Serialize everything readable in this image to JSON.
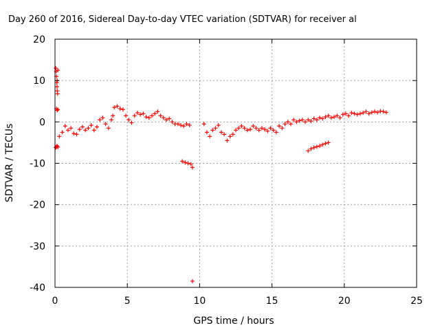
{
  "chart_data": {
    "type": "scatter",
    "title": "Day 260 of 2016, Sidereal Day-to-day VTEC variation (SDTVAR) for receiver al",
    "xlabel": "GPS time / hours",
    "ylabel": "SDTVAR / TECUs",
    "xlim": [
      0,
      25
    ],
    "ylim": [
      -40,
      20
    ],
    "xticks": [
      0,
      5,
      10,
      15,
      20,
      25
    ],
    "yticks": [
      20,
      10,
      0,
      -10,
      -20,
      -30,
      -40
    ],
    "grid": true,
    "marker_color": "#ff0000",
    "marker": "+",
    "series": [
      {
        "name": "SDTVAR",
        "points": [
          [
            0.05,
            13.0
          ],
          [
            0.08,
            12.2
          ],
          [
            0.1,
            11.0
          ],
          [
            0.12,
            9.5
          ],
          [
            0.14,
            8.5
          ],
          [
            0.16,
            7.5
          ],
          [
            0.18,
            6.8
          ],
          [
            0.2,
            12.5
          ],
          [
            0.15,
            10.0
          ],
          [
            0.1,
            3.2
          ],
          [
            0.15,
            2.8
          ],
          [
            0.2,
            3.0
          ],
          [
            0.05,
            -6.2
          ],
          [
            0.1,
            -6.0
          ],
          [
            0.15,
            -5.8
          ],
          [
            0.2,
            -6.1
          ],
          [
            0.3,
            -3.5
          ],
          [
            0.5,
            -2.5
          ],
          [
            0.7,
            -1.0
          ],
          [
            0.9,
            -2.0
          ],
          [
            1.1,
            -1.5
          ],
          [
            1.3,
            -2.8
          ],
          [
            1.5,
            -3.0
          ],
          [
            1.7,
            -1.8
          ],
          [
            1.9,
            -1.2
          ],
          [
            2.1,
            -2.0
          ],
          [
            2.3,
            -1.5
          ],
          [
            2.5,
            -0.8
          ],
          [
            2.7,
            -2.0
          ],
          [
            2.9,
            -1.2
          ],
          [
            3.1,
            0.5
          ],
          [
            3.3,
            1.0
          ],
          [
            3.5,
            -0.5
          ],
          [
            3.7,
            -1.5
          ],
          [
            3.9,
            0.5
          ],
          [
            4.0,
            1.5
          ],
          [
            4.1,
            3.5
          ],
          [
            4.3,
            3.8
          ],
          [
            4.5,
            3.2
          ],
          [
            4.7,
            3.0
          ],
          [
            4.9,
            1.5
          ],
          [
            5.1,
            0.5
          ],
          [
            5.3,
            -0.2
          ],
          [
            5.5,
            1.5
          ],
          [
            5.7,
            2.2
          ],
          [
            5.9,
            1.8
          ],
          [
            6.1,
            2.0
          ],
          [
            6.3,
            1.2
          ],
          [
            6.5,
            1.0
          ],
          [
            6.7,
            1.5
          ],
          [
            6.9,
            2.0
          ],
          [
            7.1,
            2.5
          ],
          [
            7.3,
            1.5
          ],
          [
            7.5,
            1.0
          ],
          [
            7.7,
            0.5
          ],
          [
            7.9,
            0.8
          ],
          [
            8.1,
            0.0
          ],
          [
            8.3,
            -0.5
          ],
          [
            8.5,
            -0.5
          ],
          [
            8.7,
            -0.8
          ],
          [
            8.9,
            -1.0
          ],
          [
            9.1,
            -0.5
          ],
          [
            9.3,
            -0.8
          ],
          [
            8.8,
            -9.5
          ],
          [
            9.0,
            -9.8
          ],
          [
            9.2,
            -10.0
          ],
          [
            9.4,
            -10.2
          ],
          [
            9.5,
            -11.0
          ],
          [
            9.5,
            -38.5
          ],
          [
            10.3,
            -0.5
          ],
          [
            10.5,
            -2.5
          ],
          [
            10.7,
            -3.5
          ],
          [
            10.9,
            -2.0
          ],
          [
            11.1,
            -1.5
          ],
          [
            11.3,
            -0.8
          ],
          [
            11.5,
            -2.5
          ],
          [
            11.7,
            -3.0
          ],
          [
            11.9,
            -4.5
          ],
          [
            12.1,
            -3.5
          ],
          [
            12.3,
            -3.0
          ],
          [
            12.5,
            -2.0
          ],
          [
            12.7,
            -1.5
          ],
          [
            12.9,
            -1.0
          ],
          [
            13.1,
            -1.5
          ],
          [
            13.3,
            -2.0
          ],
          [
            13.5,
            -1.8
          ],
          [
            13.7,
            -1.0
          ],
          [
            13.9,
            -1.5
          ],
          [
            14.1,
            -2.0
          ],
          [
            14.3,
            -1.5
          ],
          [
            14.5,
            -1.8
          ],
          [
            14.7,
            -2.2
          ],
          [
            14.9,
            -1.5
          ],
          [
            15.1,
            -2.0
          ],
          [
            15.3,
            -2.5
          ],
          [
            15.5,
            -1.0
          ],
          [
            15.7,
            -1.5
          ],
          [
            15.9,
            -0.5
          ],
          [
            16.1,
            0.0
          ],
          [
            16.3,
            -0.5
          ],
          [
            16.5,
            0.5
          ],
          [
            16.7,
            0.0
          ],
          [
            16.9,
            0.3
          ],
          [
            17.1,
            0.5
          ],
          [
            17.3,
            0.0
          ],
          [
            17.5,
            0.5
          ],
          [
            17.7,
            0.2
          ],
          [
            17.9,
            0.8
          ],
          [
            18.1,
            0.5
          ],
          [
            18.3,
            1.0
          ],
          [
            18.5,
            0.8
          ],
          [
            18.7,
            1.2
          ],
          [
            18.9,
            1.5
          ],
          [
            19.1,
            1.0
          ],
          [
            19.3,
            1.2
          ],
          [
            19.5,
            1.5
          ],
          [
            19.7,
            1.0
          ],
          [
            19.9,
            1.8
          ],
          [
            20.1,
            2.0
          ],
          [
            20.3,
            1.5
          ],
          [
            20.5,
            2.2
          ],
          [
            20.7,
            2.0
          ],
          [
            20.9,
            1.8
          ],
          [
            21.1,
            2.0
          ],
          [
            21.3,
            2.2
          ],
          [
            21.5,
            2.5
          ],
          [
            21.7,
            2.0
          ],
          [
            21.9,
            2.3
          ],
          [
            22.1,
            2.5
          ],
          [
            22.3,
            2.3
          ],
          [
            22.5,
            2.6
          ],
          [
            22.7,
            2.5
          ],
          [
            22.9,
            2.3
          ],
          [
            17.5,
            -7.0
          ],
          [
            17.7,
            -6.5
          ],
          [
            17.9,
            -6.2
          ],
          [
            18.1,
            -6.0
          ],
          [
            18.3,
            -5.8
          ],
          [
            18.5,
            -5.5
          ],
          [
            18.7,
            -5.2
          ],
          [
            18.9,
            -5.0
          ]
        ]
      }
    ]
  }
}
